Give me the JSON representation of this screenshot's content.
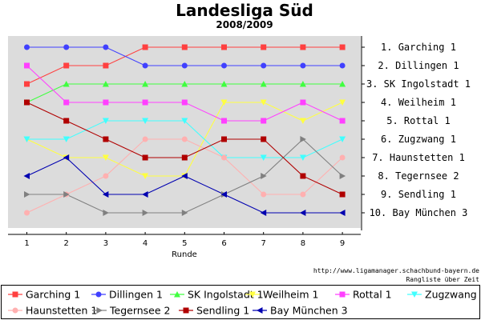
{
  "chart_data": {
    "type": "line",
    "title": "Landesliga Süd",
    "subtitle": "2008/2009",
    "xlabel": "Runde",
    "ylabel": "",
    "x": [
      1,
      2,
      3,
      4,
      5,
      6,
      7,
      8,
      9
    ],
    "ylim": [
      11,
      0
    ],
    "y_inverted": true,
    "grid": false,
    "legend_placement": "bottom",
    "rank_labels": [
      "1. Garching 1",
      "2. Dillingen 1",
      "3. SK Ingolstadt 1",
      "4. Weilheim 1",
      "5. Rottal 1",
      "6. Zugzwang 1",
      "7. Haunstetten 1",
      "8. Tegernsee 2",
      "9. Sendling 1",
      "10. Bay München 3"
    ],
    "footer_url": "http://www.ligamanager.schachbund-bayern.de",
    "footer_caption": "Rangliste über Zeit",
    "series": [
      {
        "name": "Garching 1",
        "color": "#ff4040",
        "marker": "square",
        "values": [
          3,
          2,
          2,
          1,
          1,
          1,
          1,
          1,
          1
        ]
      },
      {
        "name": "Dillingen 1",
        "color": "#4040ff",
        "marker": "circle",
        "values": [
          1,
          1,
          1,
          2,
          2,
          2,
          2,
          2,
          2
        ]
      },
      {
        "name": "SK Ingolstadt 1",
        "color": "#40ff40",
        "marker": "triangle-up",
        "values": [
          4,
          3,
          3,
          3,
          3,
          3,
          3,
          3,
          3
        ]
      },
      {
        "name": "Weilheim 1",
        "color": "#ffff40",
        "marker": "triangle-down",
        "values": [
          6,
          7,
          7,
          8,
          8,
          4,
          4,
          5,
          4
        ]
      },
      {
        "name": "Rottal 1",
        "color": "#ff40ff",
        "marker": "square",
        "values": [
          2,
          4,
          4,
          4,
          4,
          5,
          5,
          4,
          5
        ]
      },
      {
        "name": "Zugzwang 1",
        "color": "#40ffff",
        "marker": "triangle-down",
        "values": [
          6,
          6,
          5,
          5,
          5,
          7,
          7,
          7,
          6
        ]
      },
      {
        "name": "Haunstetten 1",
        "color": "#ffb0b0",
        "marker": "circle",
        "values": [
          10,
          9,
          8,
          6,
          6,
          7,
          9,
          9,
          7
        ]
      },
      {
        "name": "Tegernsee 2",
        "color": "#808080",
        "marker": "triangle-right",
        "values": [
          9,
          9,
          10,
          10,
          10,
          9,
          8,
          6,
          8
        ]
      },
      {
        "name": "Sendling 1",
        "color": "#b00000",
        "marker": "square",
        "values": [
          4,
          5,
          6,
          7,
          7,
          6,
          6,
          8,
          9
        ]
      },
      {
        "name": "Bay München 3",
        "color": "#0000b0",
        "marker": "triangle-left",
        "values": [
          8,
          7,
          9,
          9,
          8,
          9,
          10,
          10,
          10
        ]
      }
    ]
  }
}
